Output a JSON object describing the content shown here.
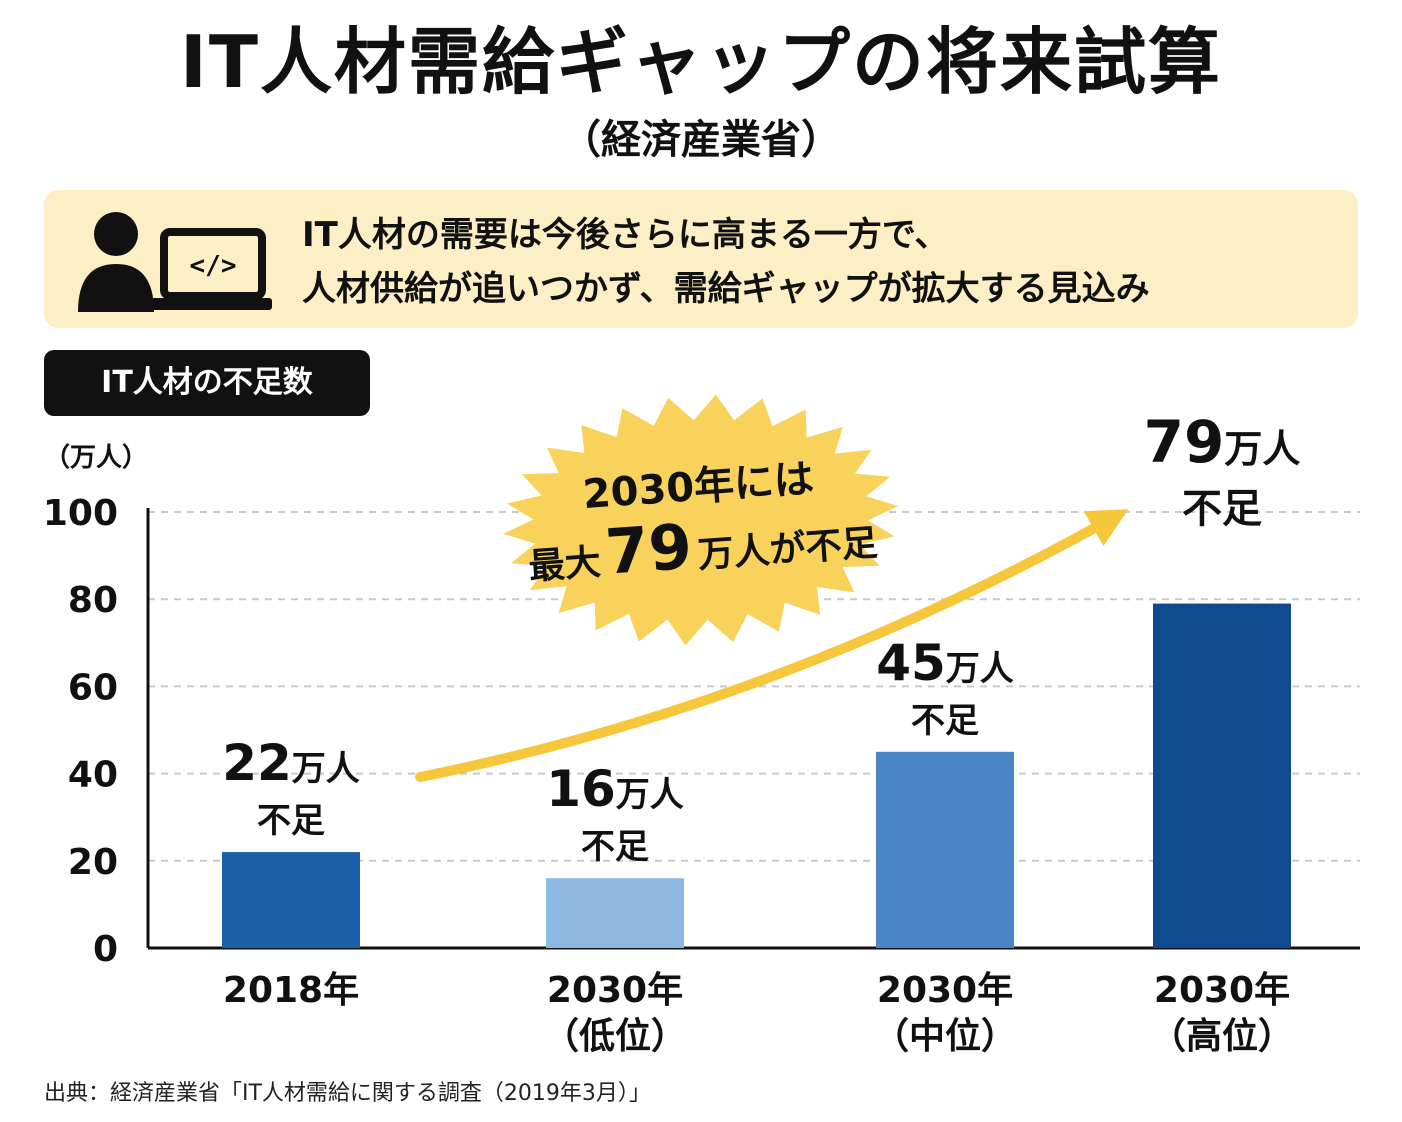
{
  "title": "IT人材需給ギャップの将来試算",
  "subtitle": "（経済産業省）",
  "info": {
    "line1": "IT人材の需要は今後さらに高まる一方で、",
    "line2": "人材供給が追いつかず、需給ギャップが拡大する見込み",
    "icon": "person-laptop-code-icon",
    "icon_code": "</>"
  },
  "section_label": "IT人材の不足数",
  "callout": {
    "line1": "2030年には",
    "line2_prefix": "最大",
    "line2_number": "79",
    "line2_suffix": "万人が不足"
  },
  "footer": "出典：経済産業省「IT人材需給に関する調査（2019年3月）」",
  "colors": {
    "bar_2018": "#1a5fa8",
    "bar_low": "#8db8e0",
    "bar_mid": "#4a86c6",
    "bar_high": "#0f4a8f",
    "arrow": "#f6c63c",
    "burst": "#f9d25c",
    "info_bg": "#fcefc6"
  },
  "chart_data": {
    "type": "bar",
    "unit_label": "（万人）",
    "ylim": [
      0,
      100
    ],
    "yticks": [
      0,
      20,
      40,
      60,
      80,
      100
    ],
    "grid": true,
    "categories": [
      {
        "line1": "2018年",
        "line2": ""
      },
      {
        "line1": "2030年",
        "line2": "（低位）"
      },
      {
        "line1": "2030年",
        "line2": "（中位）"
      },
      {
        "line1": "2030年",
        "line2": "（高位）"
      }
    ],
    "values": [
      22,
      16,
      45,
      79
    ],
    "labels": [
      {
        "num": "22",
        "unit": "万人",
        "word": "不足"
      },
      {
        "num": "16",
        "unit": "万人",
        "word": "不足"
      },
      {
        "num": "45",
        "unit": "万人",
        "word": "不足"
      },
      {
        "num": "79",
        "unit": "万人",
        "word": "不足"
      }
    ]
  }
}
